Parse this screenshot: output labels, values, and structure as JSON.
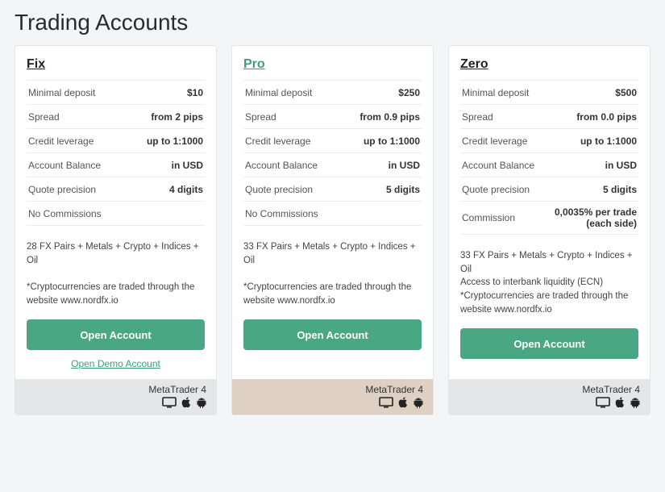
{
  "page": {
    "title": "Trading Accounts"
  },
  "colors": {
    "accent": "#4aa783",
    "link": "#3b9f77",
    "background": "#f4f5f7",
    "card_bg": "#ffffff",
    "footer_grey": "#e5e6e8",
    "footer_tan": "#ded0c3"
  },
  "labels": {
    "open_account": "Open Account",
    "open_demo": "Open Demo Account",
    "platform": "MetaTrader 4"
  },
  "spec_labels": {
    "minimal_deposit": "Minimal deposit",
    "spread": "Spread",
    "credit_leverage": "Credit leverage",
    "account_balance": "Account Balance",
    "quote_precision": "Quote precision",
    "no_commission": "No Commissions",
    "commission": "Commission"
  },
  "accounts": {
    "fix": {
      "title": "Fix",
      "minimal_deposit": "$10",
      "spread": "from 2 pips",
      "credit_leverage": "up to 1:1000",
      "account_balance": "in USD",
      "quote_precision": "4 digits",
      "desc": "28 FX Pairs + Metals + Crypto + Indices + Oil\n\n*Cryptocurrencies are traded through the website www.nordfx.io",
      "has_demo": true,
      "footer_style": "grey"
    },
    "pro": {
      "title": "Pro",
      "minimal_deposit": "$250",
      "spread": "from 0.9 pips",
      "credit_leverage": "up to 1:1000",
      "account_balance": "in USD",
      "quote_precision": "5 digits",
      "desc": "33 FX Pairs + Metals + Crypto + Indices + Oil\n\n*Cryptocurrencies are traded through the website www.nordfx.io",
      "has_demo": false,
      "footer_style": "tan"
    },
    "zero": {
      "title": "Zero",
      "minimal_deposit": "$500",
      "spread": "from 0.0 pips",
      "credit_leverage": "up to 1:1000",
      "account_balance": "in USD",
      "quote_precision": "5 digits",
      "commission": "0,0035% per trade (each side)",
      "desc": "33 FX Pairs + Metals + Crypto + Indices + Oil\nAccess to interbank liquidity (ECN)\n*Cryptocurrencies are traded through the website www.nordfx.io",
      "has_demo": false,
      "footer_style": "grey"
    }
  }
}
